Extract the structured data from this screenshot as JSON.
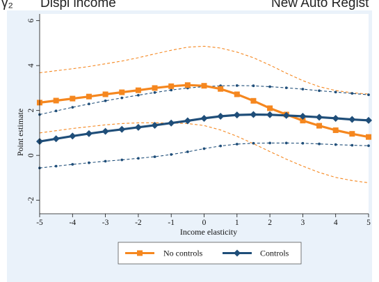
{
  "header": {
    "left_fragment": "γ̂₂",
    "middle_label": "Displ income",
    "right_label": "New Auto Regist"
  },
  "colors": {
    "no_controls": "#f5871f",
    "controls": "#1f4e79",
    "panel_bg": "#eaf2fa"
  },
  "chart_data": {
    "type": "line",
    "xlabel": "Income elasticity",
    "ylabel": "Point estimate",
    "xlim": [
      -5,
      5
    ],
    "ylim": [
      -2.6,
      6.3
    ],
    "xticks": [
      -5,
      -4,
      -3,
      -2,
      -1,
      0,
      1,
      2,
      3,
      4,
      5
    ],
    "yticks": [
      -2,
      0,
      2,
      4,
      6
    ],
    "grid": false,
    "legend_position": "bottom",
    "x": [
      -5,
      -4.5,
      -4,
      -3.5,
      -3,
      -2.5,
      -2,
      -1.5,
      -1,
      -0.5,
      0,
      0.5,
      1,
      1.5,
      2,
      2.5,
      3,
      3.5,
      4,
      4.5,
      5
    ],
    "series": [
      {
        "name": "No controls",
        "marker": "square",
        "color": "#f5871f",
        "values": [
          2.35,
          2.44,
          2.53,
          2.62,
          2.72,
          2.81,
          2.9,
          3.0,
          3.08,
          3.13,
          3.1,
          2.96,
          2.72,
          2.43,
          2.1,
          1.82,
          1.55,
          1.32,
          1.12,
          0.96,
          0.82
        ],
        "ci_upper": [
          3.68,
          3.77,
          3.86,
          3.96,
          4.08,
          4.2,
          4.35,
          4.52,
          4.68,
          4.82,
          4.86,
          4.78,
          4.6,
          4.35,
          4.02,
          3.66,
          3.33,
          3.06,
          2.89,
          2.79,
          2.73
        ],
        "ci_lower": [
          1.0,
          1.1,
          1.2,
          1.28,
          1.36,
          1.42,
          1.45,
          1.45,
          1.44,
          1.42,
          1.33,
          1.13,
          0.85,
          0.52,
          0.17,
          -0.17,
          -0.48,
          -0.76,
          -0.98,
          -1.12,
          -1.22
        ]
      },
      {
        "name": "Controls",
        "marker": "diamond",
        "color": "#1f4e79",
        "values": [
          0.62,
          0.74,
          0.86,
          0.97,
          1.07,
          1.16,
          1.25,
          1.34,
          1.44,
          1.54,
          1.65,
          1.74,
          1.8,
          1.82,
          1.81,
          1.78,
          1.74,
          1.7,
          1.65,
          1.6,
          1.56
        ],
        "ci_upper": [
          1.82,
          1.98,
          2.14,
          2.29,
          2.43,
          2.56,
          2.68,
          2.8,
          2.91,
          3.0,
          3.06,
          3.1,
          3.11,
          3.1,
          3.06,
          3.01,
          2.95,
          2.88,
          2.82,
          2.76,
          2.7
        ],
        "ci_lower": [
          -0.56,
          -0.48,
          -0.4,
          -0.33,
          -0.26,
          -0.2,
          -0.13,
          -0.06,
          0.04,
          0.16,
          0.3,
          0.42,
          0.5,
          0.54,
          0.55,
          0.55,
          0.54,
          0.51,
          0.48,
          0.45,
          0.43
        ]
      }
    ]
  }
}
